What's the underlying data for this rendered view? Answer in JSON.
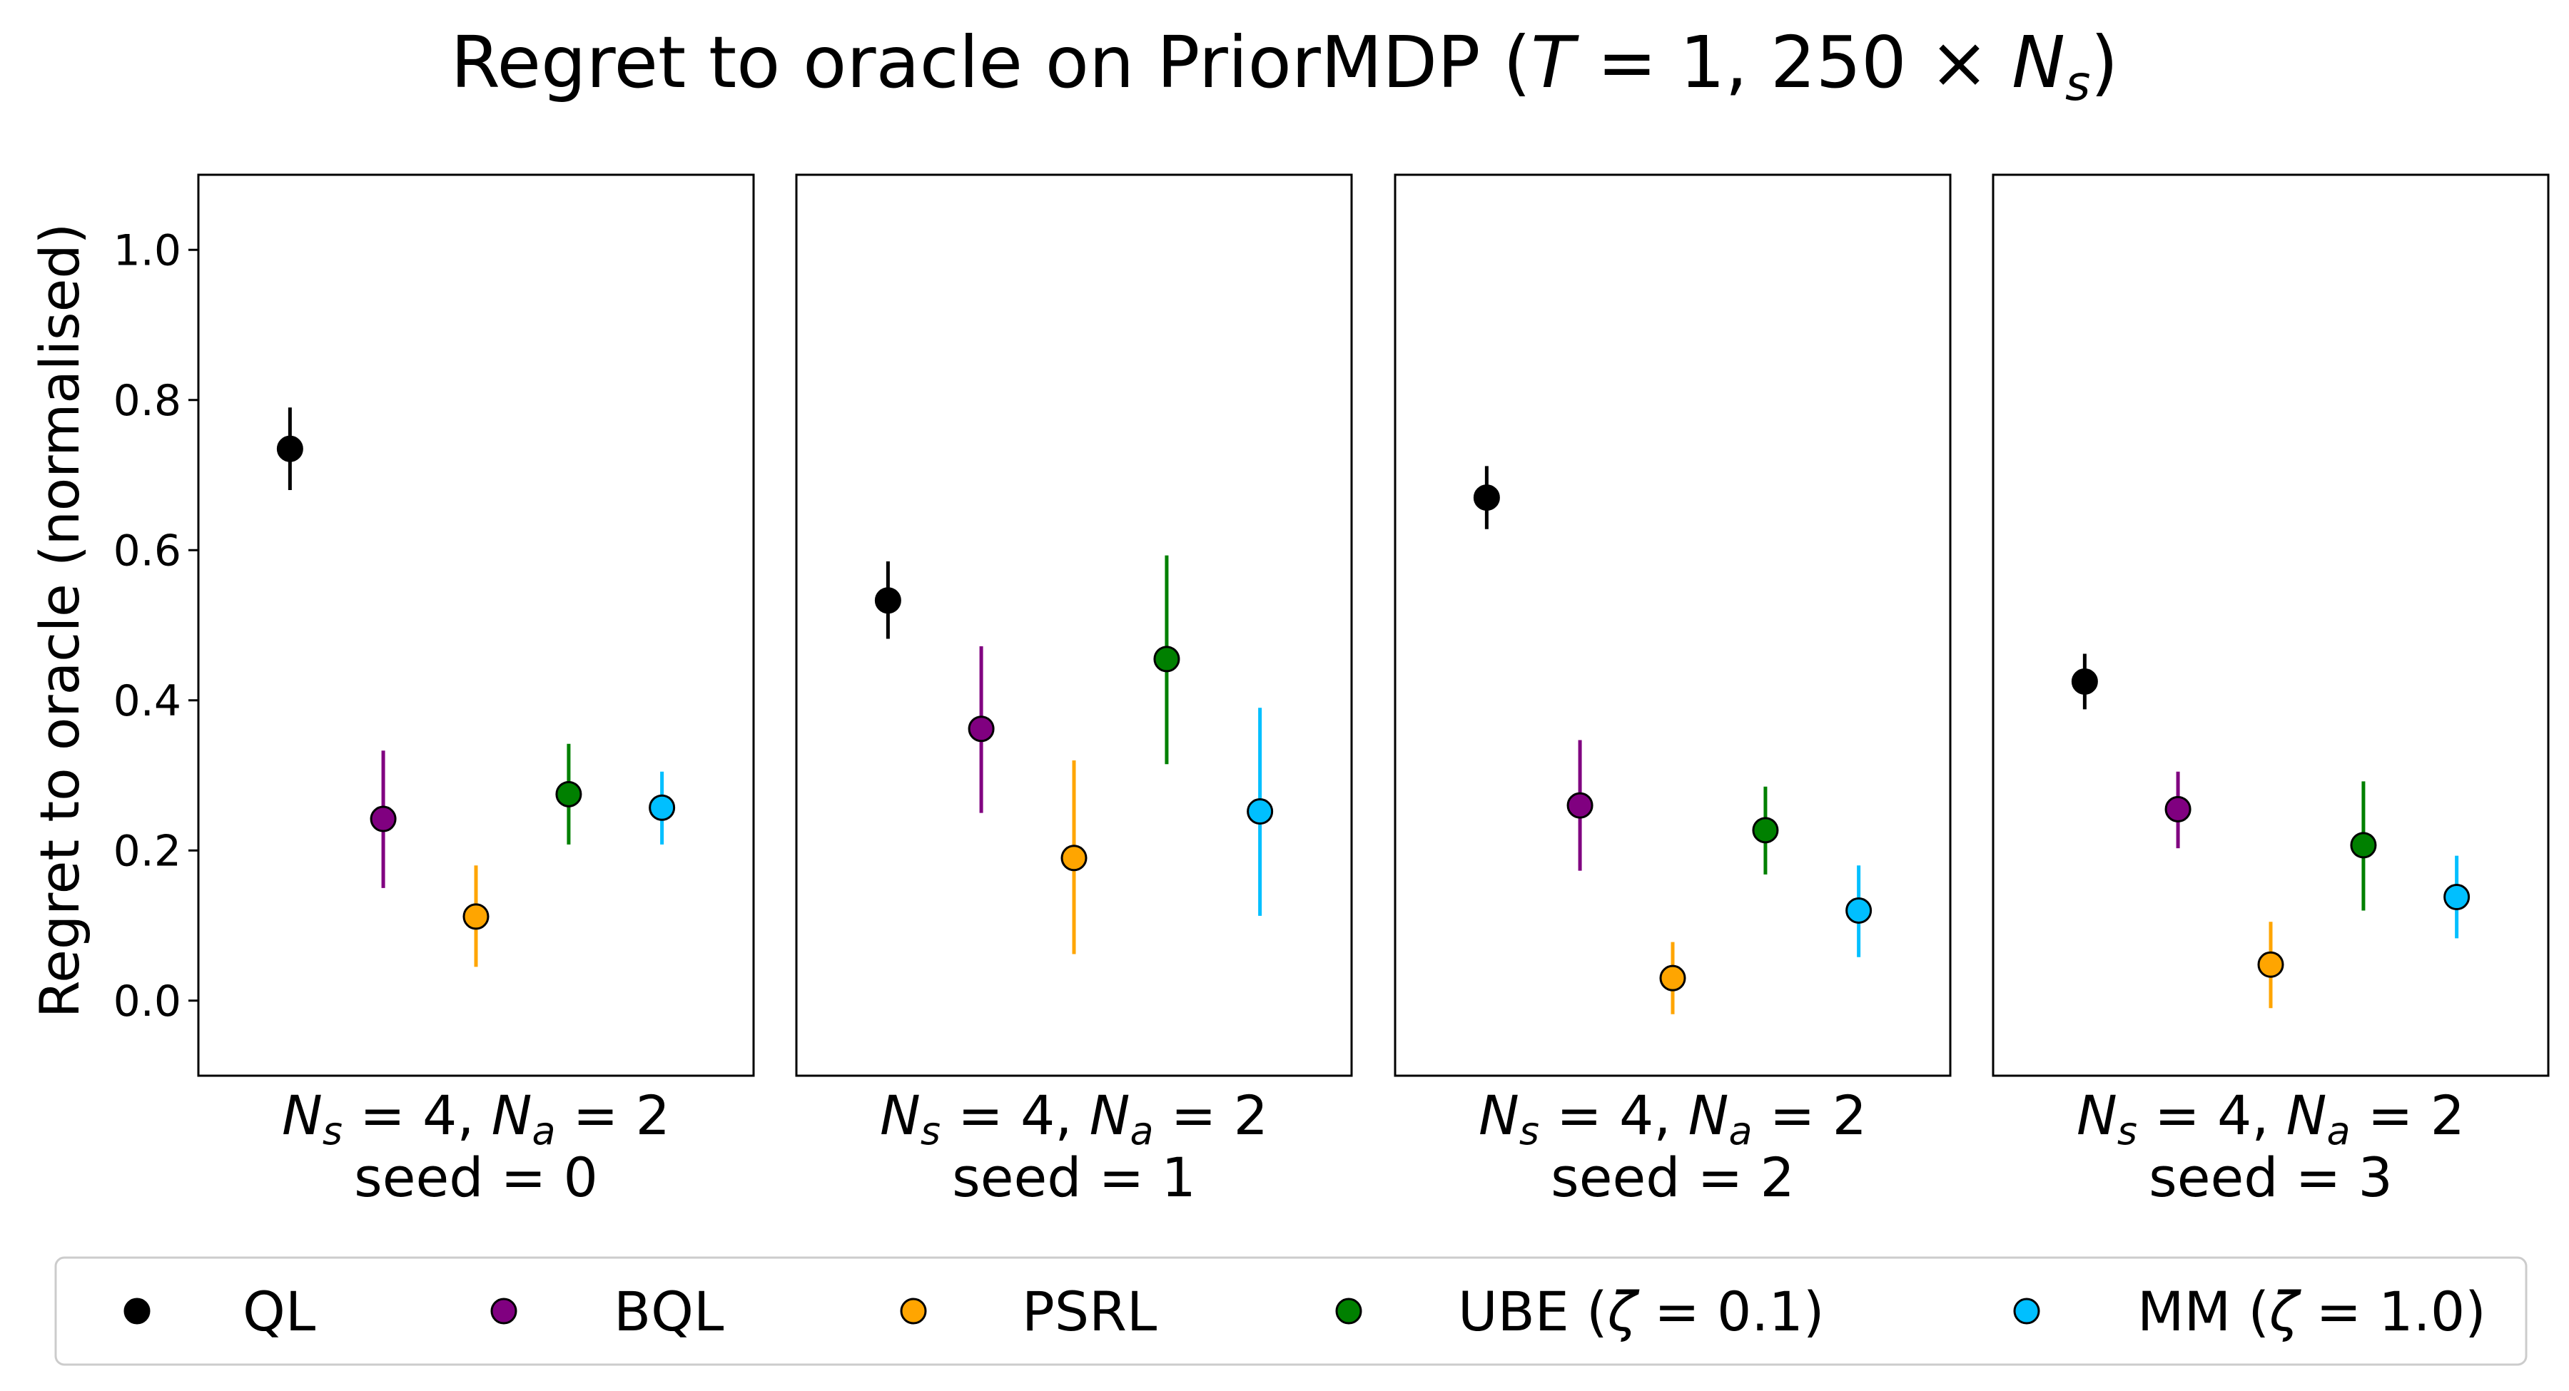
{
  "chart_data": {
    "type": "scatter",
    "title": {
      "prefix": "Regret to oracle on PriorMDP (",
      "T": "T",
      "eq": " = 1, 250 × ",
      "N": "N",
      "s": "s",
      "suffix": ")"
    },
    "ylabel": "Regret to oracle (normalised)",
    "ylim": [
      -0.1,
      1.1
    ],
    "yticks": [
      "0.0",
      "0.2",
      "0.4",
      "0.6",
      "0.8",
      "1.0"
    ],
    "ytick_values": [
      0.0,
      0.2,
      0.4,
      0.6,
      0.8,
      1.0
    ],
    "methods": [
      "QL",
      "BQL",
      "PSRL",
      "UBE",
      "MM"
    ],
    "colors": [
      "#000000",
      "#800080",
      "#ffa500",
      "#008000",
      "#00bfff"
    ],
    "panels": [
      {
        "xlabel": {
          "N": "N",
          "s": "s",
          "mid": " = 4, ",
          "N2": "N",
          "a": "a",
          "end": " = 2"
        },
        "seed": "seed = 0",
        "points": [
          {
            "method": "QL",
            "y": 0.735,
            "lo": 0.68,
            "hi": 0.79
          },
          {
            "method": "BQL",
            "y": 0.242,
            "lo": 0.15,
            "hi": 0.333
          },
          {
            "method": "PSRL",
            "y": 0.112,
            "lo": 0.045,
            "hi": 0.18
          },
          {
            "method": "UBE",
            "y": 0.275,
            "lo": 0.208,
            "hi": 0.342
          },
          {
            "method": "MM",
            "y": 0.257,
            "lo": 0.208,
            "hi": 0.305
          }
        ]
      },
      {
        "xlabel": {
          "N": "N",
          "s": "s",
          "mid": " = 4, ",
          "N2": "N",
          "a": "a",
          "end": " = 2"
        },
        "seed": "seed = 1",
        "points": [
          {
            "method": "QL",
            "y": 0.533,
            "lo": 0.482,
            "hi": 0.585
          },
          {
            "method": "BQL",
            "y": 0.362,
            "lo": 0.25,
            "hi": 0.472
          },
          {
            "method": "PSRL",
            "y": 0.19,
            "lo": 0.062,
            "hi": 0.32
          },
          {
            "method": "UBE",
            "y": 0.455,
            "lo": 0.315,
            "hi": 0.593
          },
          {
            "method": "MM",
            "y": 0.252,
            "lo": 0.113,
            "hi": 0.39
          }
        ]
      },
      {
        "xlabel": {
          "N": "N",
          "s": "s",
          "mid": " = 4, ",
          "N2": "N",
          "a": "a",
          "end": " = 2"
        },
        "seed": "seed = 2",
        "points": [
          {
            "method": "QL",
            "y": 0.67,
            "lo": 0.628,
            "hi": 0.712
          },
          {
            "method": "BQL",
            "y": 0.26,
            "lo": 0.173,
            "hi": 0.347
          },
          {
            "method": "PSRL",
            "y": 0.03,
            "lo": -0.018,
            "hi": 0.078
          },
          {
            "method": "UBE",
            "y": 0.227,
            "lo": 0.168,
            "hi": 0.285
          },
          {
            "method": "MM",
            "y": 0.12,
            "lo": 0.058,
            "hi": 0.18
          }
        ]
      },
      {
        "xlabel": {
          "N": "N",
          "s": "s",
          "mid": " = 4, ",
          "N2": "N",
          "a": "a",
          "end": " = 2"
        },
        "seed": "seed = 3",
        "points": [
          {
            "method": "QL",
            "y": 0.425,
            "lo": 0.388,
            "hi": 0.462
          },
          {
            "method": "BQL",
            "y": 0.255,
            "lo": 0.203,
            "hi": 0.305
          },
          {
            "method": "PSRL",
            "y": 0.048,
            "lo": -0.01,
            "hi": 0.105
          },
          {
            "method": "UBE",
            "y": 0.207,
            "lo": 0.12,
            "hi": 0.292
          },
          {
            "method": "MM",
            "y": 0.138,
            "lo": 0.083,
            "hi": 0.193
          }
        ]
      }
    ],
    "legend": {
      "location": "bottom",
      "entries": [
        {
          "label": "QL"
        },
        {
          "label": "BQL"
        },
        {
          "label": "PSRL"
        },
        {
          "label": "UBE",
          "paren_open": " (",
          "zeta": "ζ",
          "rest": " = 0.1)"
        },
        {
          "label": "MM",
          "paren_open": " (",
          "zeta": "ζ",
          "rest": " = 1.0)"
        }
      ]
    }
  }
}
